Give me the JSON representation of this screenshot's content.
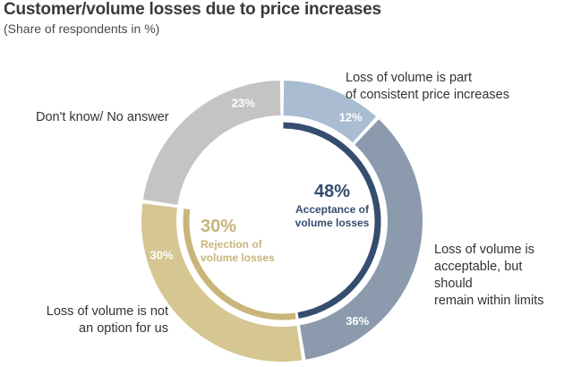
{
  "header": {
    "title": "Customer/volume losses due to price increases",
    "subtitle": "(Share of respondents in %)"
  },
  "chart_data": {
    "type": "pie",
    "variant": "donut",
    "title": "Customer/volume losses due to price increases",
    "subtitle": "(Share of respondents in %)",
    "slices": [
      {
        "name": "Loss of volume is part of consistent price increases",
        "value": 12,
        "label": "12%",
        "color": "#a9bcd2"
      },
      {
        "name": "Loss of volume is acceptable, but should remain within limits",
        "value": 36,
        "label": "36%",
        "color": "#8b9bad"
      },
      {
        "name": "Loss of volume is not an option for us",
        "value": 30,
        "label": "30%",
        "color": "#d5c692"
      },
      {
        "name": "Don't know/ No answer",
        "value": 23,
        "label": "23%",
        "color": "#c4c4c4"
      }
    ],
    "groups": [
      {
        "value_label": "48%",
        "line1": "Acceptance of",
        "line2": "volume losses",
        "color": "#354d6e"
      },
      {
        "value_label": "30%",
        "line1": "Rejection of",
        "line2": "volume losses",
        "color": "#c9b57a"
      }
    ],
    "outer_labels": [
      {
        "lines": [
          "Loss of volume is part",
          "of consistent price increases"
        ]
      },
      {
        "lines": [
          "Loss of volume is",
          "acceptable, but should",
          "remain within limits"
        ]
      },
      {
        "lines": [
          "Loss of volume is not",
          "an option for us"
        ]
      },
      {
        "lines": [
          "Don't know/ No answer"
        ]
      }
    ]
  }
}
